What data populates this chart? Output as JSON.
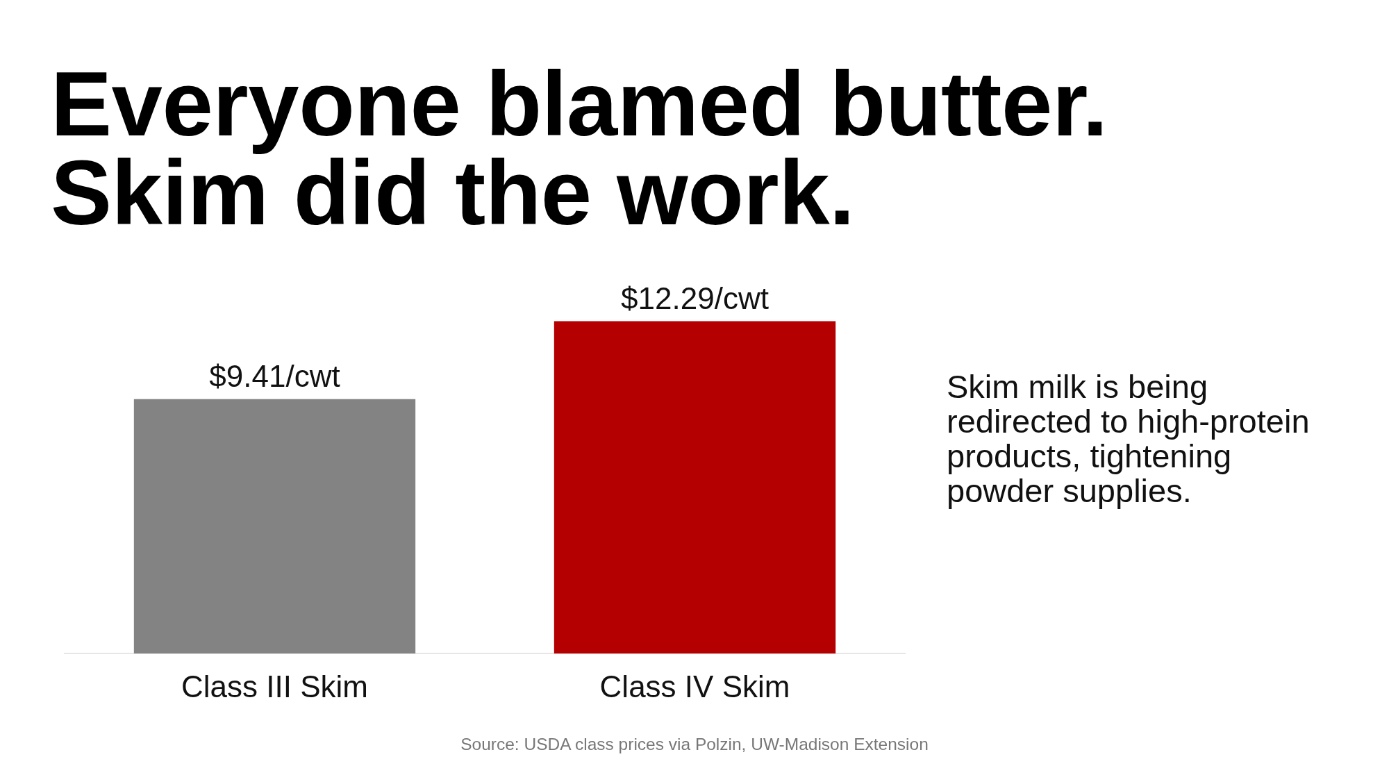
{
  "chart_data": {
    "type": "bar",
    "title": "Everyone blamed butter.\nSkim did the work.",
    "categories": [
      "Class III Skim",
      "Class IV Skim"
    ],
    "values": [
      9.41,
      12.29
    ],
    "colors": [
      "#838383",
      "#b40000"
    ],
    "value_labels": [
      "$9.41/cwt",
      "$12.29/cwt"
    ],
    "tick_labels": "x",
    "grid": false,
    "legend": false,
    "annotations": [
      "Skim milk is being redirected to high-protein products, tightening powder supplies.",
      "Source: USDA class prices via Polzin, UW-Madison Extension"
    ]
  }
}
